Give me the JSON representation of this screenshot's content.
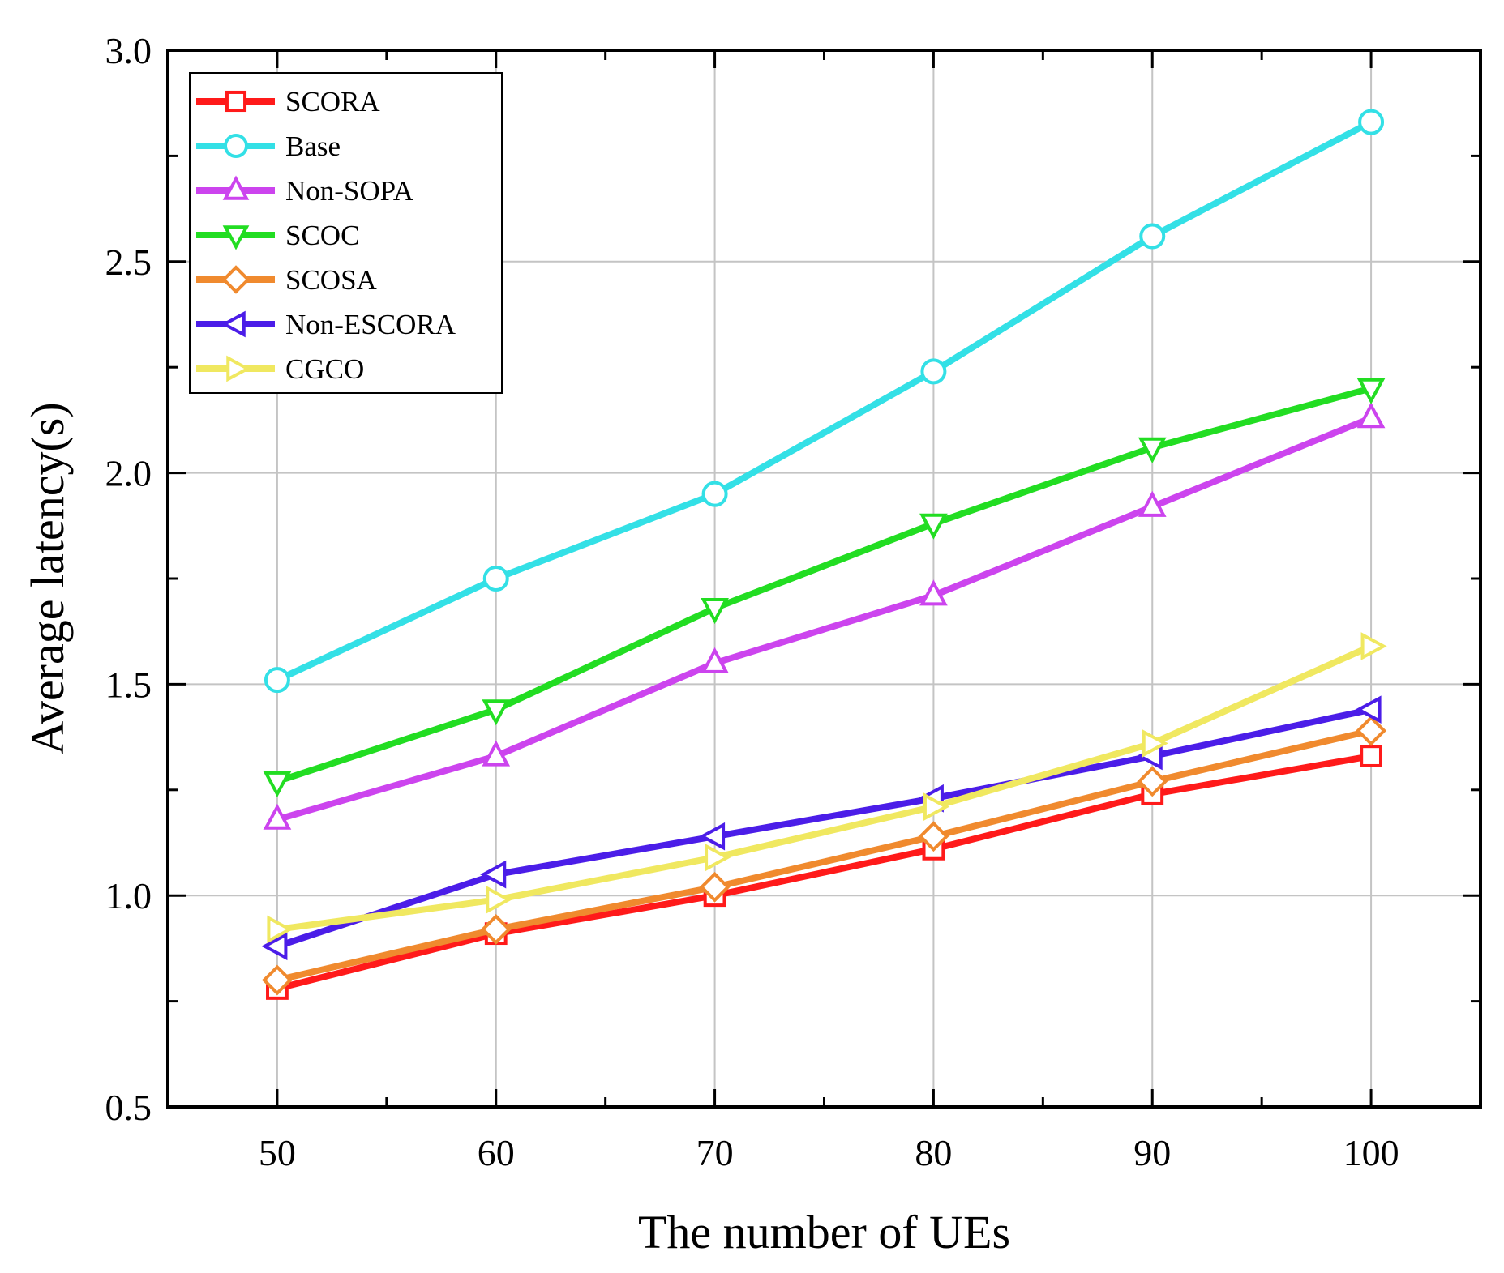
{
  "chart_data": {
    "type": "line",
    "title": "",
    "xlabel": "The number of UEs",
    "ylabel": "Average latency(s)",
    "x": [
      50,
      60,
      70,
      80,
      90,
      100
    ],
    "xlim": [
      45,
      105
    ],
    "ylim": [
      0.5,
      3.0
    ],
    "x_ticks": [
      50,
      60,
      70,
      80,
      90,
      100
    ],
    "y_ticks": [
      0.5,
      1.0,
      1.5,
      2.0,
      2.5,
      3.0
    ],
    "y_tick_labels": [
      "0.5",
      "1.0",
      "1.5",
      "2.0",
      "2.5",
      "3.0"
    ],
    "grid": true,
    "legend_position": "top-left",
    "series": [
      {
        "name": "SCORA",
        "color": "#ff1a1a",
        "marker": "square",
        "values": [
          0.78,
          0.91,
          1.0,
          1.11,
          1.24,
          1.33
        ]
      },
      {
        "name": "Base",
        "color": "#33e0e6",
        "marker": "circle",
        "values": [
          1.51,
          1.75,
          1.95,
          2.24,
          2.56,
          2.83
        ]
      },
      {
        "name": "Non-SOPA",
        "color": "#cc44ee",
        "marker": "triangle-up",
        "values": [
          1.18,
          1.33,
          1.55,
          1.71,
          1.92,
          2.13
        ]
      },
      {
        "name": "SCOC",
        "color": "#22dd22",
        "marker": "triangle-down",
        "values": [
          1.27,
          1.44,
          1.68,
          1.88,
          2.06,
          2.2
        ]
      },
      {
        "name": "SCOSA",
        "color": "#f08a2e",
        "marker": "diamond",
        "values": [
          0.8,
          0.92,
          1.02,
          1.14,
          1.27,
          1.39
        ]
      },
      {
        "name": "Non-ESCORA",
        "color": "#4b1de8",
        "marker": "triangle-left",
        "values": [
          0.88,
          1.05,
          1.14,
          1.23,
          1.33,
          1.44
        ]
      },
      {
        "name": "CGCO",
        "color": "#f0e860",
        "marker": "triangle-right",
        "values": [
          0.92,
          0.99,
          1.09,
          1.21,
          1.36,
          1.59
        ]
      }
    ]
  }
}
